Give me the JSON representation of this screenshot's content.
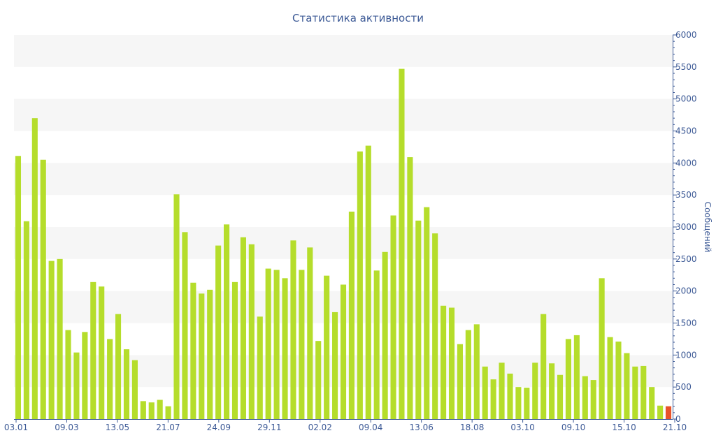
{
  "chart_data": {
    "type": "bar",
    "title": "Статистика активности",
    "xlabel": "",
    "ylabel": "Сообщений",
    "ylim": [
      0,
      6000
    ],
    "yticks": [
      0,
      500,
      1000,
      1500,
      2000,
      2500,
      3000,
      3500,
      4000,
      4500,
      5000,
      5500,
      6000
    ],
    "x_tick_labels": [
      "03.01",
      "09.03",
      "13.05",
      "21.07",
      "24.09",
      "29.11",
      "02.02",
      "09.04",
      "13.06",
      "18.08",
      "03.10",
      "09.10",
      "15.10",
      "21.10"
    ],
    "grid": "alternating horizontal bands",
    "colors": {
      "bar": "#b5dd2b",
      "highlight": "#e8532a",
      "band": "#f6f6f6",
      "text": "#3d5a96"
    },
    "series": [
      {
        "values": [
          4110,
          3090,
          4700,
          4050,
          2470,
          2500,
          1390,
          1040,
          1360,
          2140,
          2070,
          1250,
          1640,
          1090,
          920,
          280,
          260,
          300,
          200,
          3510,
          2920,
          2130,
          1960,
          2020,
          2710,
          3040,
          2140,
          2840,
          2730,
          1600,
          2350,
          2330,
          2200,
          2790,
          2330,
          2680,
          1220,
          2240,
          1670,
          2100,
          3240,
          4180,
          4270,
          2320,
          2610,
          3180,
          5470,
          4090,
          3100,
          3310,
          2900,
          1770,
          1740,
          1170,
          1390,
          1480,
          820,
          620,
          880,
          710,
          500,
          490,
          880,
          1640,
          870,
          690,
          1250,
          1310,
          670,
          610,
          2200,
          1280,
          1210,
          1030,
          820,
          830,
          500,
          210,
          200
        ]
      }
    ],
    "highlight_index": 78
  }
}
